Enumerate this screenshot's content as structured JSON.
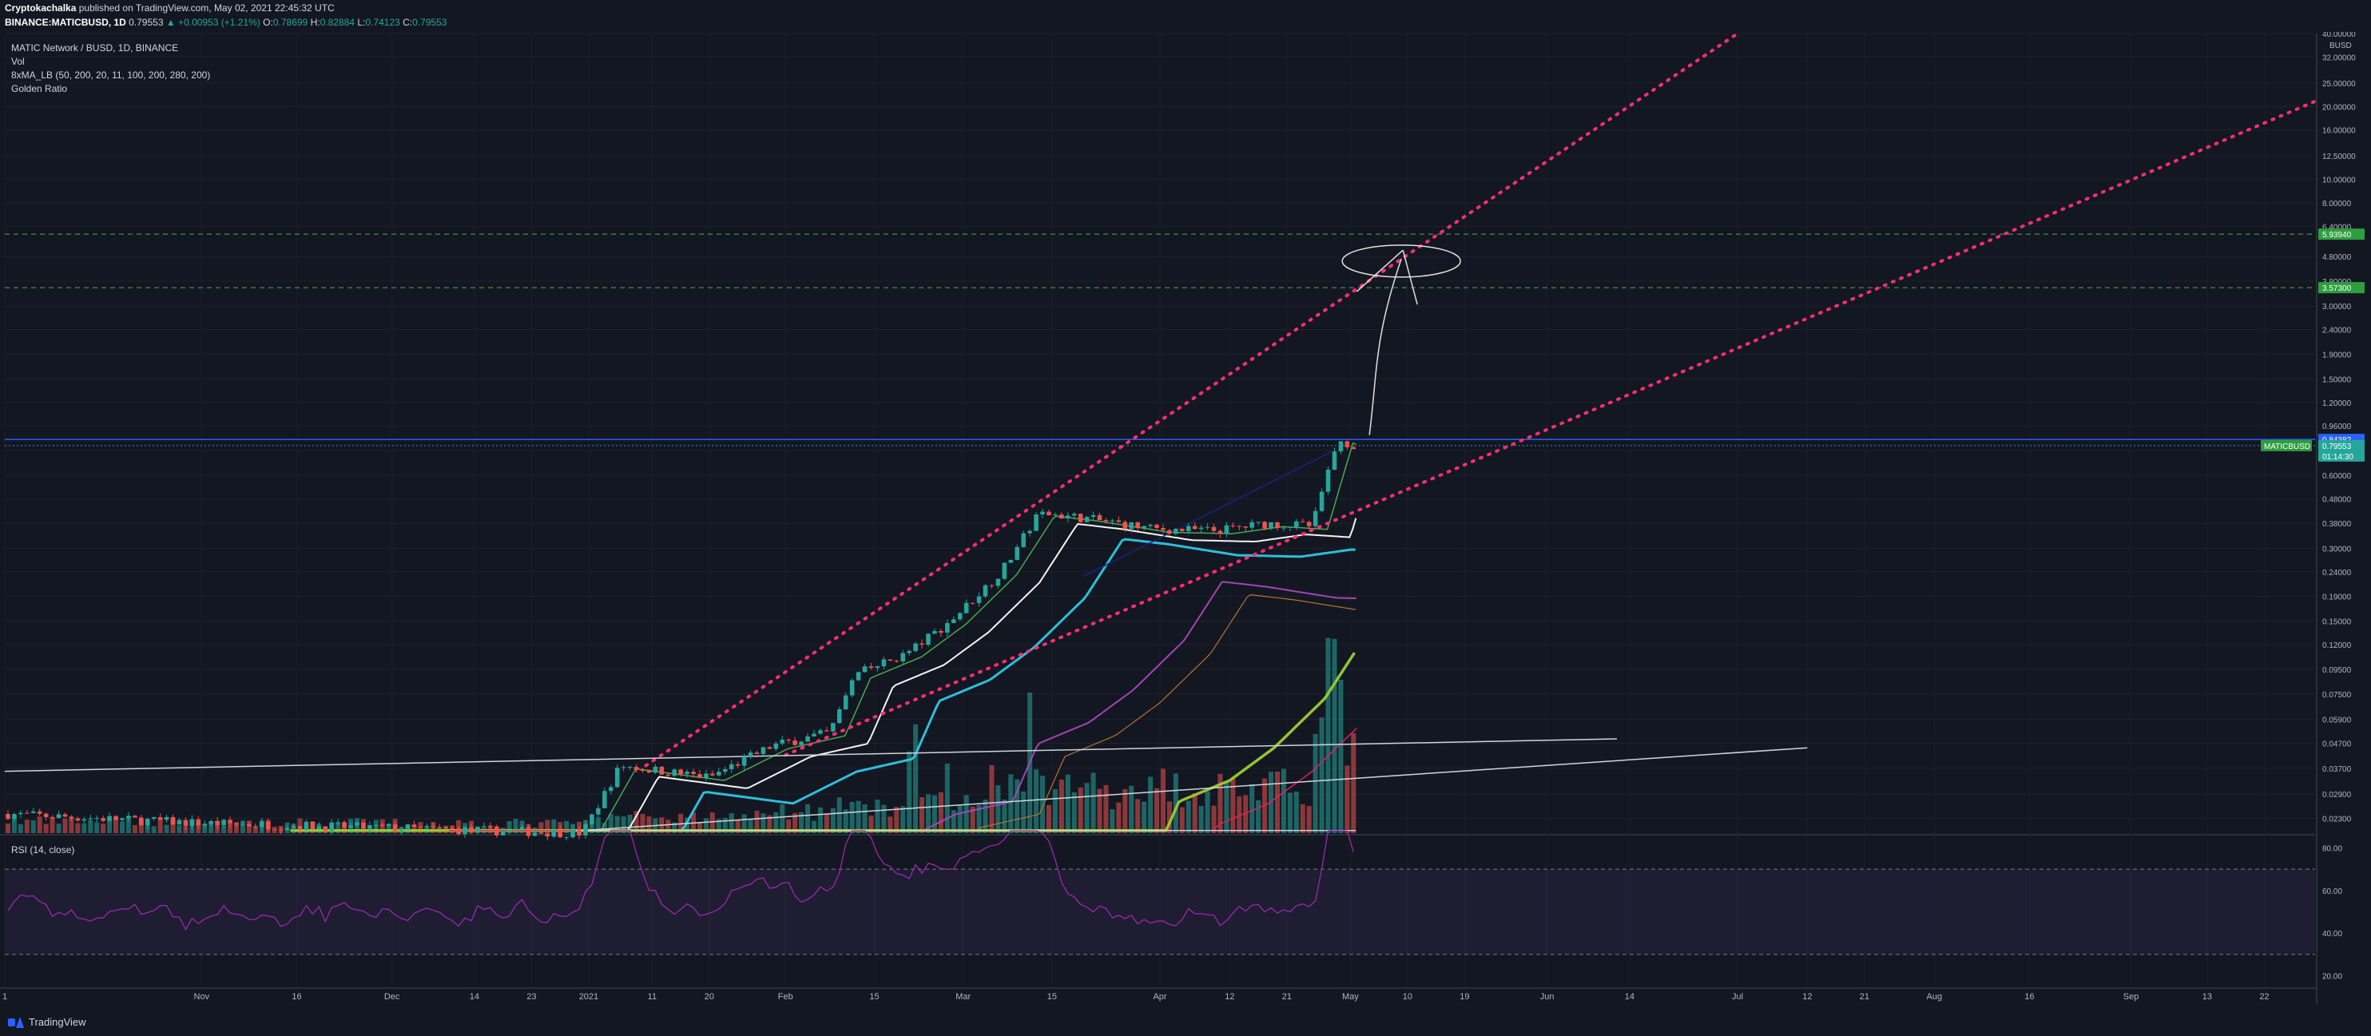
{
  "header": {
    "author": "Cryptokachalka",
    "published": "published on TradingView.com, May 02, 2021 22:45:32 UTC",
    "symbol_line_prefix": "BINANCE:MATICBUSD, 1D",
    "price": "0.79553",
    "change": "▲ +0.00953 (+1.21%)",
    "o_label": "O:",
    "o": "0.78699",
    "h_label": "H:",
    "h": "0.82884",
    "l_label": "L:",
    "l": "0.74123",
    "c_label": "C:",
    "c": "0.79553"
  },
  "legend": {
    "title": "MATIC Network / BUSD, 1D, BINANCE",
    "vol": "Vol",
    "ma": "8xMA_LB (50, 200, 20, 11, 100, 200, 280, 200)",
    "golden": "Golden Ratio"
  },
  "rsi": {
    "label": "RSI (14, close)"
  },
  "footer": {
    "brand": "TradingView"
  },
  "colors": {
    "background": "#131722",
    "up_candle": "#26a69a",
    "down_candle": "#ef5350",
    "rsi_line": "#9c27b0",
    "channel_dotted": "#ff2d6f",
    "price_line": "#2962ff",
    "badge_green": "#2e9e3e"
  },
  "chart_data": {
    "type": "line",
    "title": "MATIC Network / BUSD, 1D, BINANCE",
    "y_scale": "log",
    "ylim": [
      0.02,
      40
    ],
    "y_unit": "BUSD",
    "y_ticks": [
      "40.00000",
      "32.00000",
      "25.00000",
      "20.00000",
      "16.00000",
      "12.50000",
      "10.00000",
      "8.00000",
      "6.40000",
      "4.80000",
      "3.80000",
      "3.00000",
      "2.40000",
      "1.90000",
      "1.50000",
      "1.20000",
      "0.96000",
      "0.76000",
      "0.60000",
      "0.48000",
      "0.38000",
      "0.30000",
      "0.24000",
      "0.19000",
      "0.15000",
      "0.12000",
      "0.09500",
      "0.07500",
      "0.05900",
      "0.04700",
      "0.03700",
      "0.02900",
      "0.02300"
    ],
    "x_ticks": [
      "1",
      "Nov",
      "16",
      "Dec",
      "14",
      "23",
      "2021",
      "11",
      "20",
      "Feb",
      "15",
      "Mar",
      "15",
      "Apr",
      "12",
      "21",
      "May",
      "10",
      "19",
      "Jun",
      "14",
      "Jul",
      "12",
      "21",
      "Aug",
      "16",
      "Sep",
      "13",
      "22"
    ],
    "price_badges": [
      {
        "label": "5.93940",
        "color": "#2e9e3e"
      },
      {
        "label": "3.57300",
        "color": "#2e9e3e"
      },
      {
        "label": "0.84382",
        "color": "#2962ff"
      },
      {
        "label": "0.79553",
        "color": "#26a69a"
      },
      {
        "label": "01:14:30",
        "color": "#26a69a"
      }
    ],
    "symbol_tag": "MATICBUSD",
    "rsi_ticks": [
      "80.00",
      "60.00",
      "40.00",
      "20.00"
    ],
    "rsi_bands": [
      70,
      30
    ],
    "price_series": [
      {
        "date": "2020-10-01",
        "v": 0.024
      },
      {
        "date": "2020-11-01",
        "v": 0.022
      },
      {
        "date": "2020-12-01",
        "v": 0.021
      },
      {
        "date": "2020-12-31",
        "v": 0.02
      },
      {
        "date": "2021-01-06",
        "v": 0.038
      },
      {
        "date": "2021-01-20",
        "v": 0.034
      },
      {
        "date": "2021-01-30",
        "v": 0.046
      },
      {
        "date": "2021-02-08",
        "v": 0.052
      },
      {
        "date": "2021-02-12",
        "v": 0.09
      },
      {
        "date": "2021-02-20",
        "v": 0.11
      },
      {
        "date": "2021-02-27",
        "v": 0.15
      },
      {
        "date": "2021-03-07",
        "v": 0.24
      },
      {
        "date": "2021-03-13",
        "v": 0.42
      },
      {
        "date": "2021-03-20",
        "v": 0.4
      },
      {
        "date": "2021-03-31",
        "v": 0.36
      },
      {
        "date": "2021-04-10",
        "v": 0.355
      },
      {
        "date": "2021-04-18",
        "v": 0.38
      },
      {
        "date": "2021-04-25",
        "v": 0.37
      },
      {
        "date": "2021-04-27",
        "v": 0.56
      },
      {
        "date": "2021-04-29",
        "v": 0.84
      },
      {
        "date": "2021-05-02",
        "v": 0.795
      }
    ],
    "levels": [
      5.9394,
      3.573,
      0.84382
    ]
  }
}
